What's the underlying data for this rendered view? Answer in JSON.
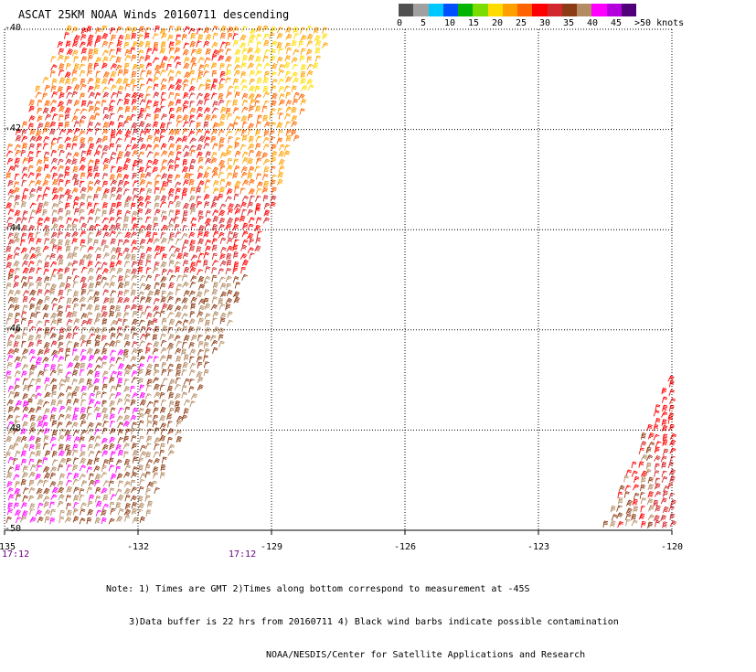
{
  "title": "ASCAT 25KM NOAA Winds 20160711 descending",
  "legend": {
    "colors": [
      "#505050",
      "#a0a0a0",
      "#00c8ff",
      "#0050ff",
      "#00b400",
      "#7adc00",
      "#ffdc00",
      "#ffa000",
      "#ff6400",
      "#ff0000",
      "#d2282d",
      "#8c3c14",
      "#b48c64",
      "#ff00ff",
      "#b400dc",
      "#500078"
    ],
    "labels": [
      "0",
      "5",
      "10",
      "15",
      "20",
      "25",
      "30",
      "35",
      "40",
      "45",
      ">50 knots"
    ],
    "label_values": [
      0,
      5,
      10,
      15,
      20,
      25,
      30,
      35,
      40,
      45,
      50
    ]
  },
  "map": {
    "lat_ticks": [
      "-40",
      "-42",
      "-44",
      "-46",
      "-48",
      "-50"
    ],
    "lon_ticks": [
      "-135",
      "-132",
      "-129",
      "-126",
      "-123",
      "-120"
    ],
    "lat_range": [
      -40,
      -50
    ],
    "lon_range": [
      -135,
      -120
    ],
    "times": [
      "17:12",
      "17:12"
    ],
    "swaths": [
      {
        "name": "main-swath",
        "polygon": [
          [
            -133.6,
            -40.0
          ],
          [
            -127.7,
            -40.0
          ],
          [
            -128.1,
            -41.0
          ],
          [
            -128.4,
            -42.0
          ],
          [
            -128.8,
            -43.0
          ],
          [
            -129.2,
            -44.0
          ],
          [
            -129.6,
            -45.0
          ],
          [
            -130.0,
            -46.0
          ],
          [
            -130.5,
            -47.0
          ],
          [
            -131.0,
            -48.0
          ],
          [
            -131.5,
            -49.0
          ],
          [
            -131.9,
            -50.0
          ],
          [
            -135.0,
            -50.0
          ],
          [
            -135.0,
            -42.5
          ]
        ],
        "wind_bands": [
          {
            "lat": [
              -40.0,
              -41.3
            ],
            "colors": [
              "#ff6400",
              "#ff0000",
              "#ffa000"
            ],
            "east_colors": [
              "#ffa000",
              "#ffdc00"
            ]
          },
          {
            "lat": [
              -41.3,
              -43.3
            ],
            "colors": [
              "#d2282d",
              "#ff0000",
              "#ff6400"
            ],
            "east_colors": [
              "#ffa000",
              "#ff6400"
            ]
          },
          {
            "lat": [
              -43.3,
              -45.0
            ],
            "colors": [
              "#d2282d",
              "#b48c64",
              "#ff0000"
            ],
            "east_colors": [
              "#ff0000",
              "#d2282d"
            ]
          },
          {
            "lat": [
              -45.0,
              -46.5
            ],
            "colors": [
              "#b48c64",
              "#8c3c14",
              "#d2282d"
            ],
            "east_colors": [
              "#8c3c14",
              "#b48c64"
            ]
          },
          {
            "lat": [
              -46.5,
              -48.5
            ],
            "colors": [
              "#8c3c14",
              "#ff00ff",
              "#b48c64"
            ],
            "east_colors": [
              "#8c3c14",
              "#b48c64"
            ]
          },
          {
            "lat": [
              -48.5,
              -50.0
            ],
            "colors": [
              "#8c3c14",
              "#ff00ff",
              "#b48c64"
            ],
            "east_colors": [
              "#b48c64",
              "#8c3c14"
            ]
          }
        ]
      },
      {
        "name": "east-swath",
        "polygon": [
          [
            -120.0,
            -46.8
          ],
          [
            -120.0,
            -50.0
          ],
          [
            -121.6,
            -50.0
          ]
        ],
        "wind_bands": [
          {
            "lat": [
              -46.8,
              -48.5
            ],
            "colors": [
              "#ff0000",
              "#d2282d",
              "#8c3c14"
            ],
            "east_colors": [
              "#ff0000"
            ]
          },
          {
            "lat": [
              -48.5,
              -50.0
            ],
            "colors": [
              "#ff0000",
              "#b48c64",
              "#8c3c14"
            ],
            "east_colors": [
              "#d2282d"
            ]
          }
        ]
      }
    ]
  },
  "notes": {
    "line1": "Note: 1) Times are GMT 2)Times along bottom correspond to measurement at -45S",
    "line2": "3)Data buffer is 22 hrs from 20160711 4) Black wind barbs indicate possible contamination",
    "line3": "NOAA/NESDIS/Center for Satellite Applications and Research"
  }
}
